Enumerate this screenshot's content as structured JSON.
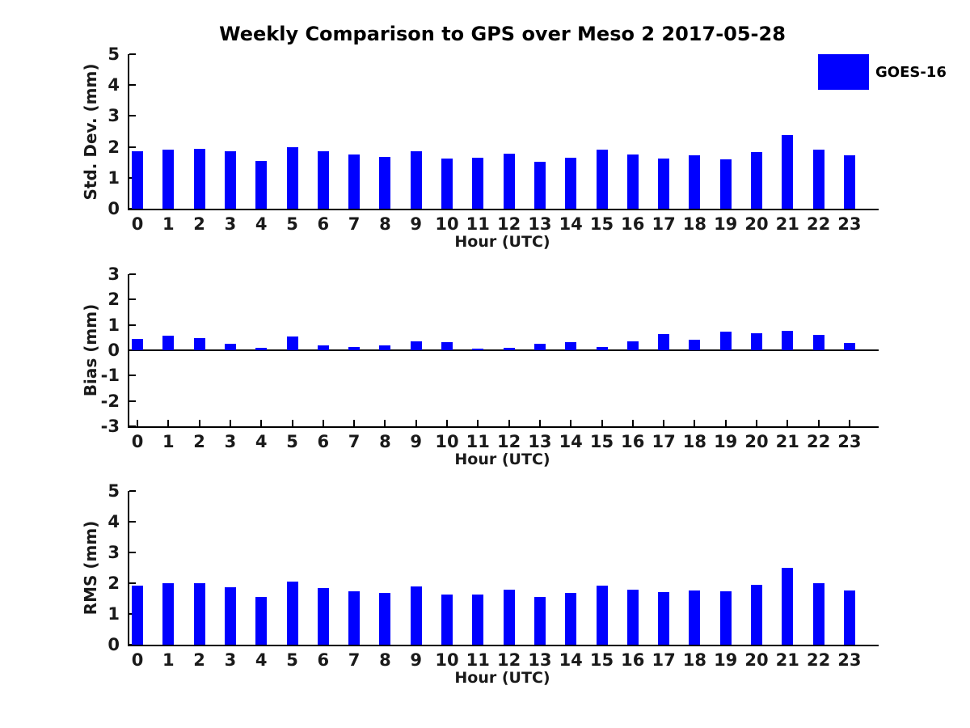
{
  "figure": {
    "title": "Weekly Comparison to GPS over Meso 2 2017-05-28",
    "background_color": "#ffffff"
  },
  "legend": {
    "label": "GOES-16",
    "swatch_color": "#0000ff"
  },
  "chart_data": {
    "type": "bar",
    "title": "Weekly Comparison to GPS over Meso 2 2017-05-28",
    "x_label": "Hour (UTC)",
    "categories": [
      "0",
      "1",
      "2",
      "3",
      "4",
      "5",
      "6",
      "7",
      "8",
      "9",
      "10",
      "11",
      "12",
      "13",
      "14",
      "15",
      "16",
      "17",
      "18",
      "19",
      "20",
      "21",
      "22",
      "23"
    ],
    "bar_color": "#0000ff",
    "grid": false,
    "legend": {
      "entries": [
        "GOES-16"
      ],
      "position": "top-right",
      "swatch_color": "#0000ff"
    },
    "panels": [
      {
        "id": "std-dev",
        "ylabel": "Std. Dev. (mm)",
        "xlabel": "Hour (UTC)",
        "ylim": [
          0,
          5
        ],
        "yticks": [
          0,
          1,
          2,
          3,
          4,
          5
        ],
        "series": [
          {
            "name": "GOES-16",
            "values": [
              1.87,
              1.91,
              1.94,
              1.86,
              1.55,
              1.98,
              1.86,
              1.75,
              1.67,
              1.86,
              1.62,
              1.64,
              1.79,
              1.53,
              1.65,
              1.91,
              1.76,
              1.61,
              1.73,
              1.6,
              1.84,
              2.38,
              1.91,
              1.73
            ]
          }
        ]
      },
      {
        "id": "bias",
        "ylabel": "Bias (mm)",
        "xlabel": "Hour (UTC)",
        "ylim": [
          -3,
          3
        ],
        "yticks": [
          -3,
          -2,
          -1,
          0,
          1,
          2,
          3
        ],
        "series": [
          {
            "name": "GOES-16",
            "values": [
              0.45,
              0.57,
              0.48,
              0.24,
              0.1,
              0.55,
              0.18,
              0.14,
              0.2,
              0.36,
              0.33,
              0.07,
              0.11,
              0.27,
              0.31,
              0.14,
              0.36,
              0.64,
              0.42,
              0.72,
              0.68,
              0.77,
              0.6,
              0.29
            ]
          }
        ]
      },
      {
        "id": "rms",
        "ylabel": "RMS (mm)",
        "xlabel": "Hour (UTC)",
        "ylim": [
          0,
          5
        ],
        "yticks": [
          0,
          1,
          2,
          3,
          4,
          5
        ],
        "series": [
          {
            "name": "GOES-16",
            "values": [
              1.92,
              1.99,
              2.0,
              1.87,
              1.56,
              2.05,
              1.84,
              1.73,
              1.68,
              1.89,
              1.62,
              1.63,
              1.8,
              1.55,
              1.68,
              1.92,
              1.8,
              1.72,
              1.76,
              1.73,
              1.95,
              2.49,
              1.99,
              1.76
            ]
          }
        ]
      }
    ]
  }
}
